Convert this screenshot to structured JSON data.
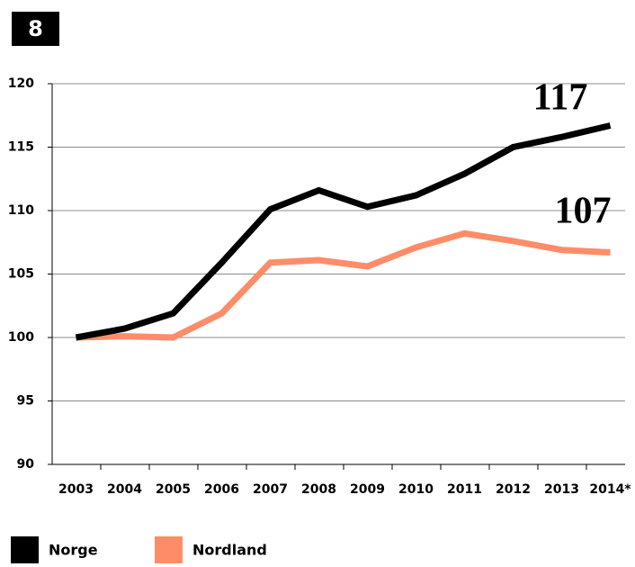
{
  "chart_data": {
    "type": "line",
    "figure_number": "8",
    "categories": [
      "2003",
      "2004",
      "2005",
      "2006",
      "2007",
      "2008",
      "2009",
      "2010",
      "2011",
      "2012",
      "2013",
      "2014*"
    ],
    "series": [
      {
        "name": "Norge",
        "color": "#000000",
        "values": [
          100,
          100.7,
          101.9,
          105.9,
          110.1,
          111.6,
          110.3,
          111.2,
          112.9,
          115.0,
          115.8,
          116.7
        ]
      },
      {
        "name": "Nordland",
        "color": "#ff8c69",
        "values": [
          100,
          100.1,
          100.0,
          101.9,
          105.9,
          106.1,
          105.6,
          107.1,
          108.2,
          107.6,
          106.9,
          106.7
        ]
      }
    ],
    "annotations": [
      "117",
      "107"
    ],
    "ylim": [
      90,
      120
    ],
    "yticks": [
      90,
      95,
      100,
      105,
      110,
      115,
      120
    ],
    "grid": true
  }
}
